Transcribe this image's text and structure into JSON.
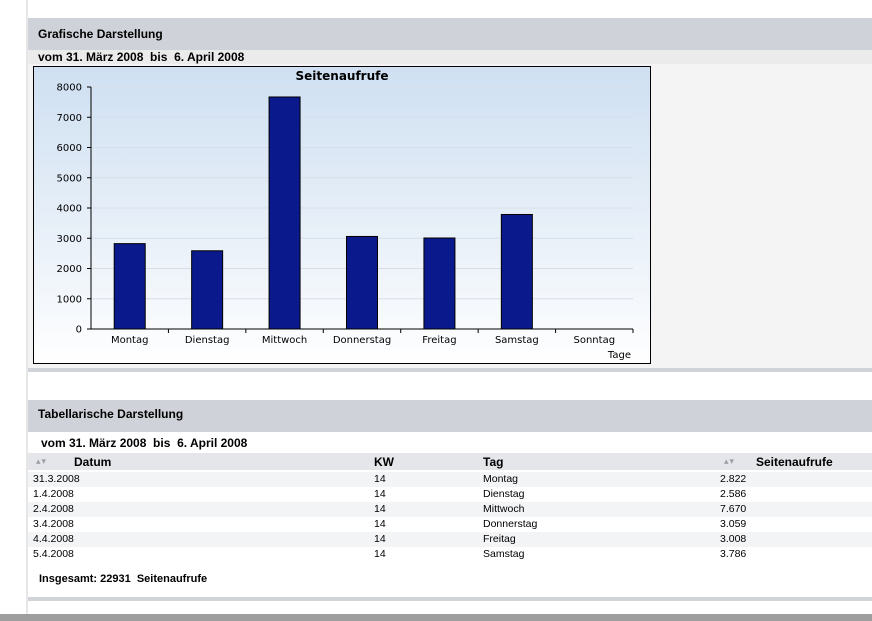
{
  "graphic_section": {
    "title": "Grafische Darstellung",
    "date_range": "vom 31. März 2008  bis  6. April 2008"
  },
  "chart_data": {
    "type": "bar",
    "title": "Seitenaufrufe",
    "xlabel": "Tage",
    "ylabel": "",
    "categories": [
      "Montag",
      "Dienstag",
      "Mittwoch",
      "Donnerstag",
      "Freitag",
      "Samstag",
      "Sonntag"
    ],
    "values": [
      2822,
      2586,
      7670,
      3059,
      3008,
      3786,
      0
    ],
    "ylim": [
      0,
      8000
    ],
    "yticks": [
      "0",
      "1000",
      "2000",
      "3000",
      "4000",
      "5000",
      "6000",
      "7000",
      "8000"
    ],
    "grid": true,
    "bar_color": "#0a1a8c"
  },
  "table_section": {
    "title": "Tabellarische Darstellung",
    "date_range": "vom 31. März 2008  bis  6. April 2008",
    "columns": [
      "Datum",
      "KW",
      "Tag",
      "Seitenaufrufe"
    ],
    "rows": [
      {
        "datum": "31.3.2008",
        "kw": "14",
        "tag": "Montag",
        "aufrufe": "2.822"
      },
      {
        "datum": "1.4.2008",
        "kw": "14",
        "tag": "Dienstag",
        "aufrufe": "2.586"
      },
      {
        "datum": "2.4.2008",
        "kw": "14",
        "tag": "Mittwoch",
        "aufrufe": "7.670"
      },
      {
        "datum": "3.4.2008",
        "kw": "14",
        "tag": "Donnerstag",
        "aufrufe": "3.059"
      },
      {
        "datum": "4.4.2008",
        "kw": "14",
        "tag": "Freitag",
        "aufrufe": "3.008"
      },
      {
        "datum": "5.4.2008",
        "kw": "14",
        "tag": "Samstag",
        "aufrufe": "3.786"
      }
    ],
    "total": "Insgesamt: 22931  Seitenaufrufe"
  },
  "icons": {
    "sort": "sort-arrows-icon"
  },
  "colors": {
    "header_band": "#cfd2d8",
    "bar": "#0a1a8c"
  }
}
